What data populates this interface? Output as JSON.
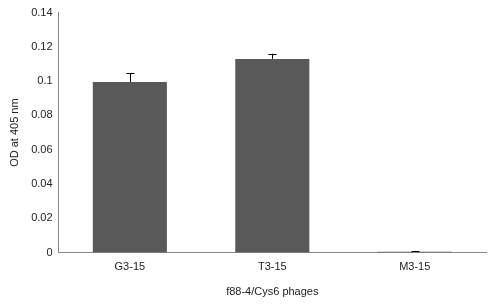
{
  "chart_data": {
    "type": "bar",
    "x_label": "f88-4/Cys6 phages",
    "y_label": "OD at 405 nm",
    "categories": [
      "G3-15",
      "T3-15",
      "M3-15"
    ],
    "values": [
      0.0995,
      0.113,
      0.0005
    ],
    "errors": [
      0.005,
      0.003,
      0.0005
    ],
    "color": "#595959",
    "ylim": [
      0,
      0.14
    ],
    "yticks": [
      0,
      0.02,
      0.04,
      0.06,
      0.08,
      0.1,
      0.12,
      0.14
    ],
    "grid": false
  }
}
